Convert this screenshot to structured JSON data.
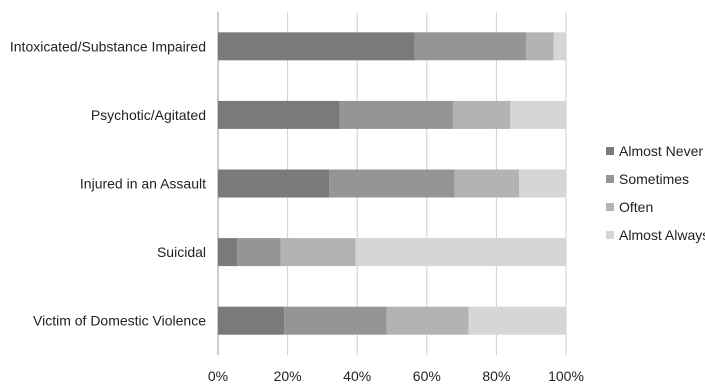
{
  "chart_data": {
    "type": "bar",
    "orientation": "horizontal",
    "stacked": "percent",
    "categories": [
      "Intoxicated/Substance Impaired",
      "Psychotic/Agitated",
      "Injured in an Assault",
      "Suicidal",
      "Victim of Domestic Violence"
    ],
    "series": [
      {
        "name": "Almost Never",
        "color": "#7a7a7a",
        "values": [
          56.5,
          35,
          32,
          5.5,
          19
        ]
      },
      {
        "name": "Sometimes",
        "color": "#959595",
        "values": [
          32,
          32.5,
          36,
          12.5,
          29.5
        ]
      },
      {
        "name": "Often",
        "color": "#b3b3b3",
        "values": [
          8,
          16.5,
          18.5,
          21.5,
          23.5
        ]
      },
      {
        "name": "Almost Always",
        "color": "#d6d6d6",
        "values": [
          3.5,
          16,
          13.5,
          60.5,
          28
        ]
      }
    ],
    "x_ticks": [
      "0%",
      "20%",
      "40%",
      "60%",
      "80%",
      "100%"
    ],
    "xlim": [
      0,
      100
    ],
    "grid": "vertical",
    "legend_position": "right",
    "title": "",
    "xlabel": "",
    "ylabel": ""
  }
}
